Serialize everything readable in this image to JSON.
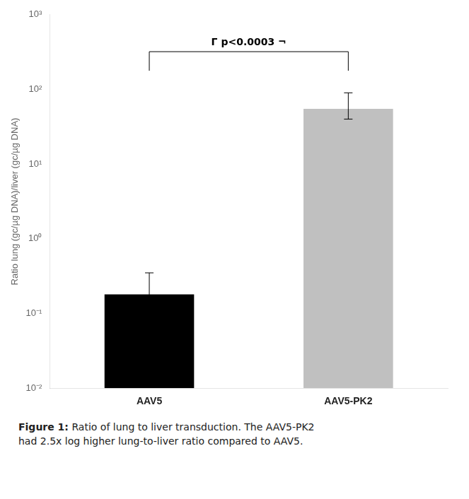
{
  "chart_data": {
    "type": "bar",
    "categories": [
      "AAV5",
      "AAV5-PK2"
    ],
    "values": [
      0.18,
      55.0
    ],
    "error_lower": [
      0.08,
      15.0
    ],
    "error_upper": [
      0.17,
      35.0
    ],
    "colors": [
      "#000000",
      "#c0c0c0"
    ],
    "ylabel": "Ratio lung (gc/µg DNA)/liver (gc/µg DNA)",
    "log": "y",
    "ylim": [
      0.01,
      1000
    ],
    "yticks": [
      {
        "value": 0.01,
        "label": "10⁻²"
      },
      {
        "value": 0.1,
        "label": "10⁻¹"
      },
      {
        "value": 1,
        "label": "10⁰"
      },
      {
        "value": 10,
        "label": "10¹"
      },
      {
        "value": 100,
        "label": "10²"
      },
      {
        "value": 1000,
        "label": "10³"
      }
    ],
    "grid": false,
    "annotations": [
      {
        "text": "Γ p<0.0003 ¬",
        "from": "AAV5",
        "to": "AAV5-PK2",
        "y": 320
      }
    ],
    "caption_title": "Figure 1:",
    "caption": "Ratio of lung to liver transduction. The AAV5-PK2\nhad 2.5x log higher lung-to-liver ratio compared to AAV5."
  }
}
